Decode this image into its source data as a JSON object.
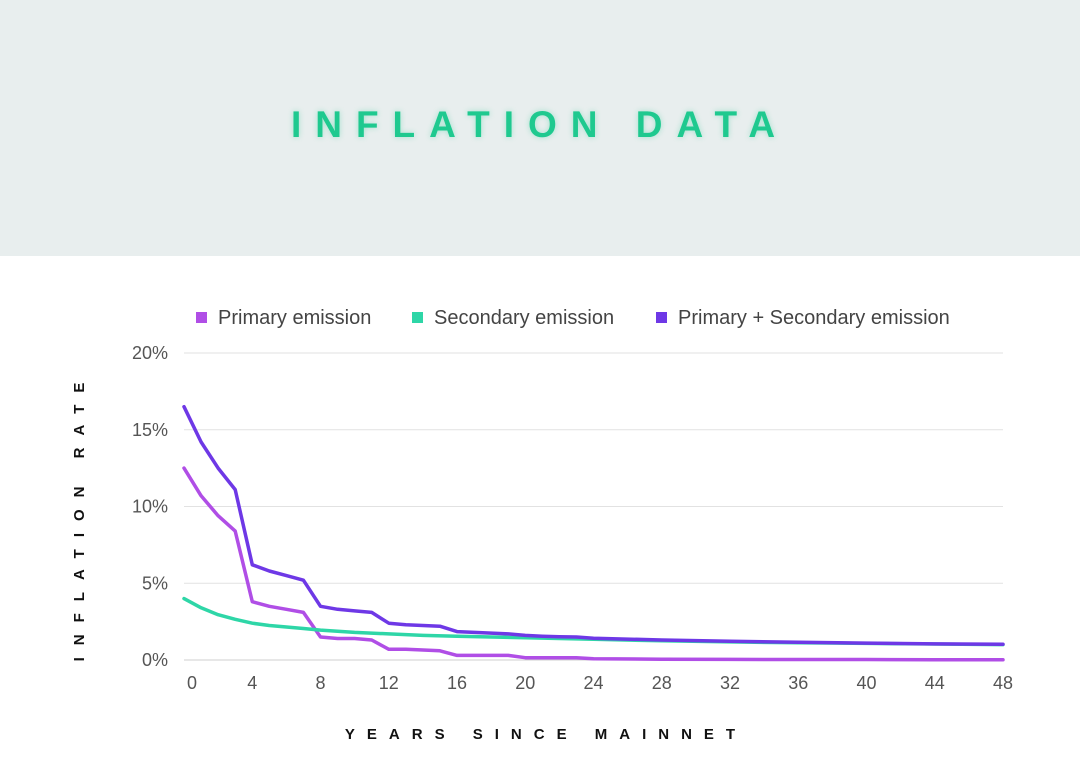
{
  "title": "INFLATION DATA",
  "chart_data": {
    "type": "line",
    "title": "INFLATION DATA",
    "xlabel": "YEARS SINCE MAINNET",
    "ylabel": "INFLATION RATE",
    "xlim": [
      0,
      48
    ],
    "ylim": [
      0,
      20
    ],
    "xticks": [
      0,
      4,
      8,
      12,
      16,
      20,
      24,
      28,
      32,
      36,
      40,
      44,
      48
    ],
    "yticks": [
      "0%",
      "5%",
      "10%",
      "15%",
      "20%"
    ],
    "yticks_values": [
      0,
      5,
      10,
      15,
      20
    ],
    "grid": "horizontal",
    "legend_position": "top",
    "series": [
      {
        "name": "Primary emission",
        "color": "#b04ee6",
        "x": [
          0,
          1,
          2,
          3,
          4,
          5,
          6,
          7,
          8,
          9,
          10,
          11,
          12,
          13,
          14,
          15,
          16,
          17,
          18,
          19,
          20,
          21,
          22,
          23,
          24,
          28,
          32,
          36,
          40,
          44,
          48
        ],
        "y": [
          12.5,
          10.7,
          9.4,
          8.4,
          3.8,
          3.5,
          3.3,
          3.1,
          1.5,
          1.4,
          1.4,
          1.3,
          0.7,
          0.7,
          0.65,
          0.6,
          0.3,
          0.3,
          0.3,
          0.3,
          0.15,
          0.15,
          0.15,
          0.15,
          0.08,
          0.05,
          0.04,
          0.03,
          0.03,
          0.02,
          0.02
        ]
      },
      {
        "name": "Secondary emission",
        "color": "#2ed6a7",
        "x": [
          0,
          1,
          2,
          3,
          4,
          5,
          6,
          7,
          8,
          10,
          12,
          14,
          16,
          20,
          24,
          28,
          32,
          36,
          40,
          44,
          48
        ],
        "y": [
          4.0,
          3.4,
          2.95,
          2.65,
          2.4,
          2.25,
          2.15,
          2.05,
          1.95,
          1.8,
          1.7,
          1.6,
          1.55,
          1.45,
          1.35,
          1.25,
          1.18,
          1.12,
          1.08,
          1.04,
          1.0
        ]
      },
      {
        "name": "Primary + Secondary emission",
        "color": "#6e38e6",
        "x": [
          0,
          1,
          2,
          3,
          4,
          5,
          6,
          7,
          8,
          9,
          10,
          11,
          12,
          13,
          14,
          15,
          16,
          17,
          18,
          19,
          20,
          21,
          22,
          23,
          24,
          28,
          32,
          36,
          40,
          44,
          48
        ],
        "y": [
          16.5,
          14.2,
          12.5,
          11.1,
          6.2,
          5.8,
          5.5,
          5.2,
          3.5,
          3.3,
          3.2,
          3.1,
          2.4,
          2.3,
          2.25,
          2.2,
          1.85,
          1.8,
          1.75,
          1.7,
          1.6,
          1.55,
          1.52,
          1.5,
          1.42,
          1.3,
          1.22,
          1.15,
          1.1,
          1.05,
          1.02
        ]
      }
    ]
  }
}
